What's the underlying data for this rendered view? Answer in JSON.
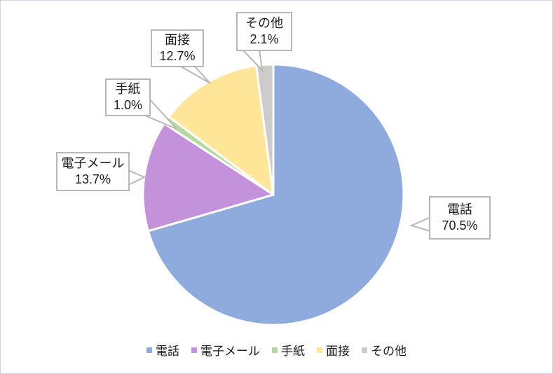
{
  "chart_data": {
    "type": "pie",
    "title": "",
    "categories": [
      "電話",
      "電子メール",
      "手紙",
      "面接",
      "その他"
    ],
    "values": [
      70.5,
      13.7,
      1.0,
      12.7,
      2.1
    ],
    "unit": "%",
    "colors": [
      "#8FAADC",
      "#C491DB",
      "#B5D9A0",
      "#FFE699",
      "#CCCACB"
    ],
    "start_angle_deg": 0,
    "direction": "clockwise",
    "slice_gap_color": "#FFFFFF",
    "legend_position": "bottom",
    "legend": [
      "電話",
      "電子メール",
      "手紙",
      "面接",
      "その他"
    ],
    "callouts": [
      {
        "label": "電話",
        "value": "70.5%"
      },
      {
        "label": "電子メール",
        "value": "13.7%"
      },
      {
        "label": "手紙",
        "value": "1.0%"
      },
      {
        "label": "面接",
        "value": "12.7%"
      },
      {
        "label": "その他",
        "value": "2.1%"
      }
    ]
  }
}
